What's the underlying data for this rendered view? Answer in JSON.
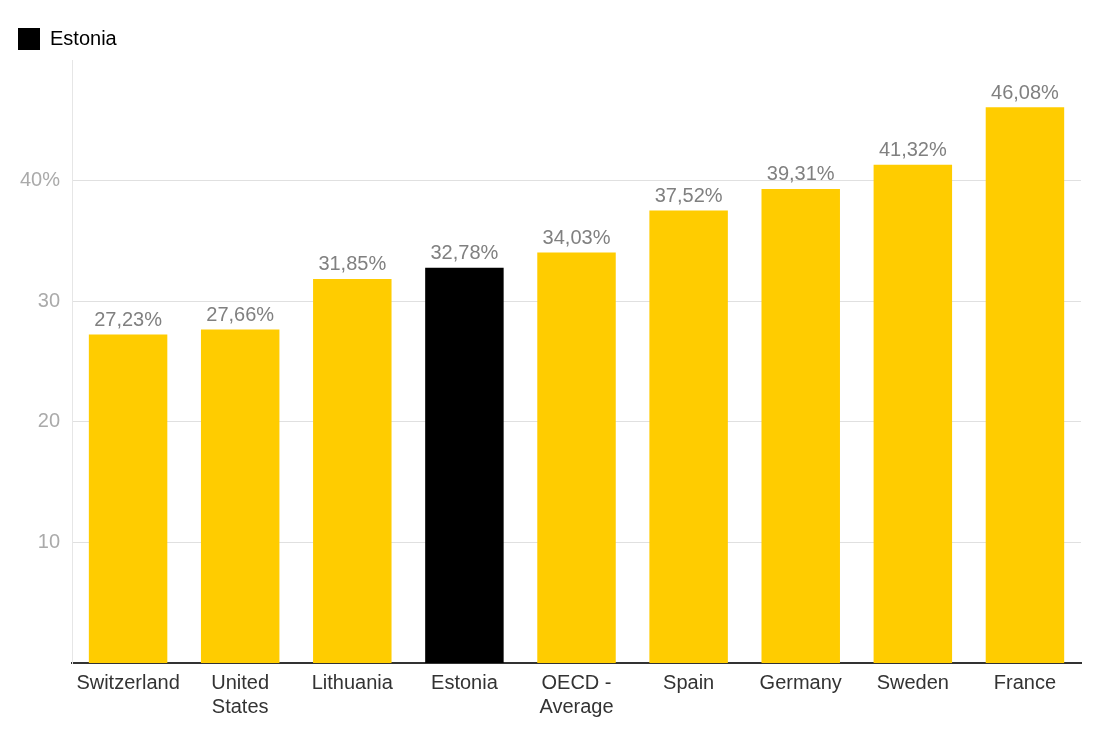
{
  "chart_data": {
    "type": "bar",
    "categories": [
      "Switzerland",
      "United States",
      "Lithuania",
      "Estonia",
      "OECD - Average",
      "Spain",
      "Germany",
      "Sweden",
      "France"
    ],
    "series": [
      {
        "name": "Estonia",
        "color": "#000000",
        "values": [
          null,
          null,
          null,
          32.78,
          null,
          null,
          null,
          null,
          null
        ],
        "value_labels": [
          null,
          null,
          null,
          "32,78%",
          null,
          null,
          null,
          null,
          null
        ]
      },
      {
        "color": "#ffcc00",
        "values": [
          27.23,
          27.66,
          31.85,
          null,
          34.03,
          37.52,
          39.31,
          41.32,
          46.08
        ],
        "value_labels": [
          "27,23%",
          "27,66%",
          "31,85%",
          null,
          "34,03%",
          "37,52%",
          "39,31%",
          "41,32%",
          "46,08%"
        ]
      }
    ],
    "ylim": [
      0,
      50
    ],
    "yticks": [
      10,
      20,
      30,
      {
        "value": 40,
        "label": "40%"
      }
    ],
    "grid": "y",
    "legend": "top left"
  }
}
